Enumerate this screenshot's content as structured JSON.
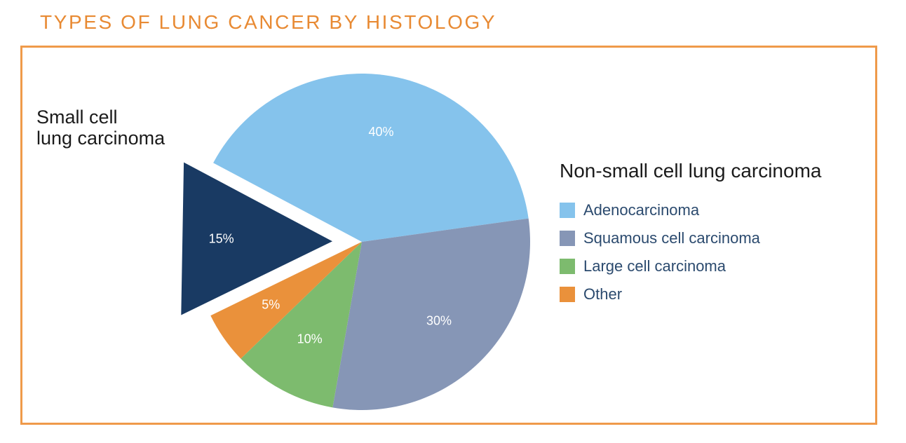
{
  "chart_data": {
    "type": "pie",
    "title": "TYPES OF LUNG CANCER BY HISTOLOGY",
    "callout_label": [
      "Small cell",
      "lung carcinoma"
    ],
    "legend_title": "Non-small cell lung carcinoma",
    "legend_placement": "right",
    "slices": [
      {
        "name": "Adenocarcinoma",
        "value": 40,
        "label": "40%",
        "color": "#85c3ec",
        "in_legend": true,
        "exploded": false
      },
      {
        "name": "Squamous cell carcinoma",
        "value": 30,
        "label": "30%",
        "color": "#8696b6",
        "in_legend": true,
        "exploded": false
      },
      {
        "name": "Large cell carcinoma",
        "value": 10,
        "label": "10%",
        "color": "#7dbb6e",
        "in_legend": true,
        "exploded": false
      },
      {
        "name": "Other",
        "value": 5,
        "label": "5%",
        "color": "#ea913b",
        "in_legend": true,
        "exploded": false
      },
      {
        "name": "Small cell lung carcinoma",
        "value": 15,
        "label": "15%",
        "color": "#193a63",
        "in_legend": false,
        "exploded": true
      }
    ]
  }
}
